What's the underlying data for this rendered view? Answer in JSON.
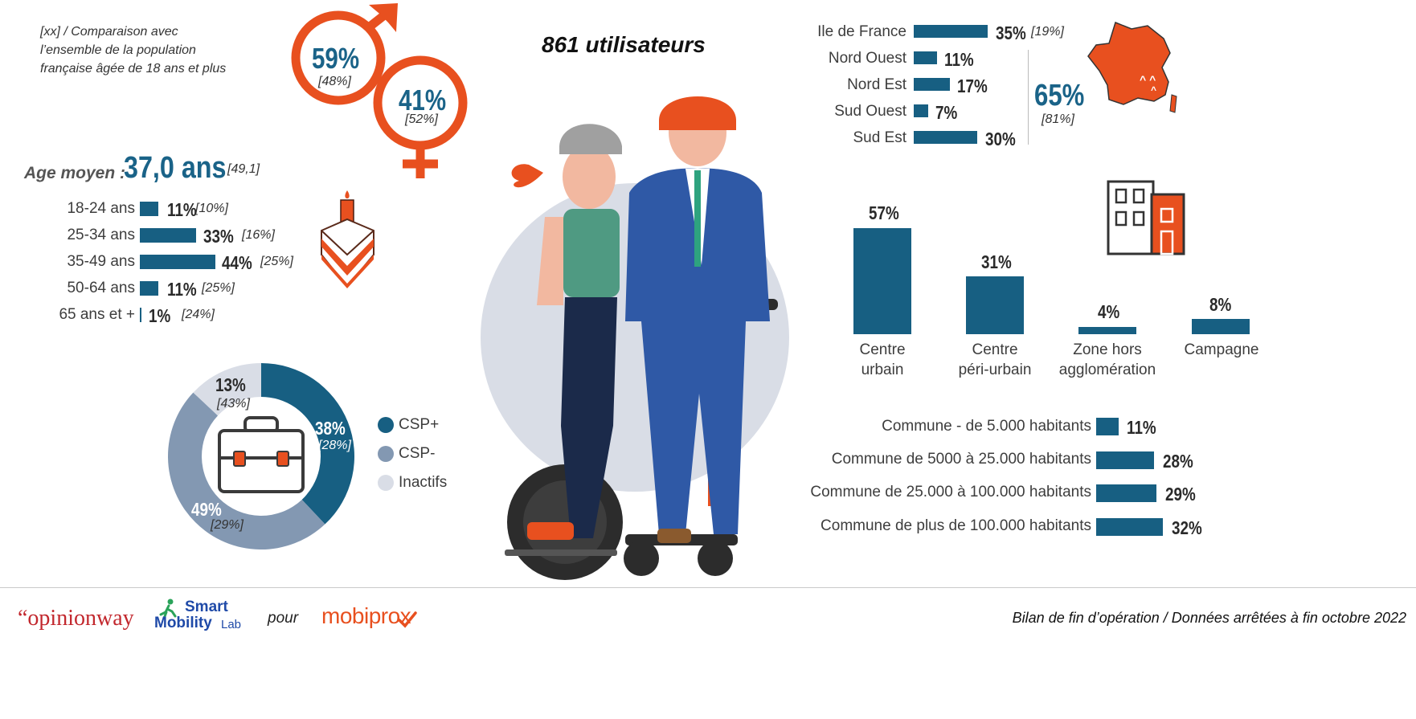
{
  "note_lines": [
    "[xx] / Comparaison avec",
    "l’ensemble de la population",
    "française âgée de 18 ans et plus"
  ],
  "headline": "861 utilisateurs",
  "gender": {
    "male": {
      "pct": "59%",
      "ref": "[48%]"
    },
    "female": {
      "pct": "41%",
      "ref": "[52%]"
    }
  },
  "age": {
    "label": "Age moyen :",
    "value": "37,0 ans",
    "ref": "[49,1]"
  },
  "colors": {
    "teal": "#175f82",
    "orange": "#e8501f",
    "grey_blue": "#8398b2",
    "light_grey": "#d9dde6"
  },
  "chart_data": [
    {
      "type": "bar",
      "orientation": "horizontal",
      "categories": [
        "18-24 ans",
        "25-34 ans",
        "35-49 ans",
        "50-64 ans",
        "65 ans et +"
      ],
      "values": [
        11,
        33,
        44,
        11,
        1
      ],
      "value_labels": [
        "11%",
        "33%",
        "44%",
        "11%",
        "1%"
      ],
      "references": [
        "[10%]",
        "[16%]",
        "[25%]",
        "[25%]",
        "[24%]"
      ]
    },
    {
      "type": "pie",
      "donut": true,
      "categories": [
        "CSP+",
        "CSP-",
        "Inactifs"
      ],
      "values": [
        38,
        49,
        13
      ],
      "value_labels": [
        "38%",
        "49%",
        "13%"
      ],
      "references": [
        "[28%]",
        "[29%]",
        "[43%]"
      ],
      "colors": [
        "#175f82",
        "#8398b2",
        "#d9dde6"
      ],
      "legend": "right"
    },
    {
      "type": "bar",
      "orientation": "horizontal",
      "categories": [
        "Ile de France",
        "Nord Ouest",
        "Nord Est",
        "Sud Ouest",
        "Sud Est"
      ],
      "values": [
        35,
        11,
        17,
        7,
        30
      ],
      "value_labels": [
        "35%",
        "11%",
        "17%",
        "7%",
        "30%"
      ],
      "references": [
        "[19%]",
        "",
        "",
        "",
        ""
      ],
      "group_total": {
        "value": "65%",
        "ref": "[81%]"
      }
    },
    {
      "type": "bar",
      "orientation": "vertical",
      "categories": [
        "Centre urbain",
        "Centre péri-urbain",
        "Zone hors agglomération",
        "Campagne"
      ],
      "category_lines": [
        [
          "Centre",
          "urbain"
        ],
        [
          "Centre",
          "péri-urbain"
        ],
        [
          "Zone hors",
          "agglomération"
        ],
        [
          "Campagne"
        ]
      ],
      "values": [
        57,
        31,
        4,
        8
      ],
      "value_labels": [
        "57%",
        "31%",
        "4%",
        "8%"
      ]
    },
    {
      "type": "bar",
      "orientation": "horizontal",
      "categories": [
        "Commune - de 5.000 habitants",
        "Commune de 5000 à 25.000 habitants",
        "Commune de 25.000 à 100.000 habitants",
        "Commune de plus de 100.000 habitants"
      ],
      "values": [
        11,
        28,
        29,
        32
      ],
      "value_labels": [
        "11%",
        "28%",
        "29%",
        "32%"
      ]
    }
  ],
  "footer": {
    "opinionway": "“opinionway",
    "sml_top": "Smart",
    "sml_bottom": "Mobility",
    "sml_lab": "Lab",
    "pour": "pour",
    "mobiprox": "mobiprox",
    "right": "Bilan de fin d’opération / Données arrêtées à fin octobre 2022"
  }
}
